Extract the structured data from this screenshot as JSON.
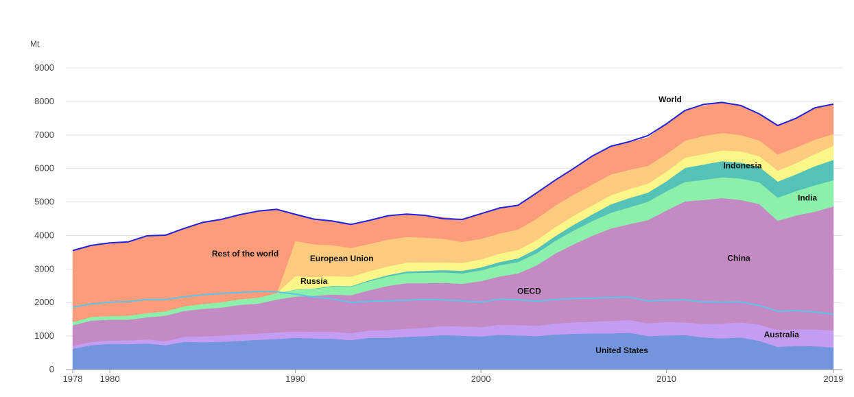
{
  "chart_data": {
    "type": "area",
    "stacked": true,
    "ylabel": "Mt",
    "ylim": [
      0,
      9000
    ],
    "yticks": [
      0,
      1000,
      2000,
      3000,
      4000,
      5000,
      6000,
      7000,
      8000,
      9000
    ],
    "xlim": [
      1978,
      2019
    ],
    "xticks": [
      1978,
      1980,
      1990,
      2000,
      2010,
      2019
    ],
    "grid": true,
    "x": [
      1978,
      1979,
      1980,
      1981,
      1982,
      1983,
      1984,
      1985,
      1986,
      1987,
      1988,
      1989,
      1990,
      1991,
      1992,
      1993,
      1994,
      1995,
      1996,
      1997,
      1998,
      1999,
      2000,
      2001,
      2002,
      2003,
      2004,
      2005,
      2006,
      2007,
      2008,
      2009,
      2010,
      2011,
      2012,
      2013,
      2014,
      2015,
      2016,
      2017,
      2018,
      2019
    ],
    "series": [
      {
        "name": "United States",
        "color": "#7295dd",
        "values": [
          620,
          730,
          770,
          760,
          780,
          730,
          830,
          820,
          830,
          860,
          890,
          910,
          950,
          930,
          920,
          880,
          950,
          950,
          980,
          1000,
          1030,
          1010,
          990,
          1040,
          1020,
          1000,
          1050,
          1070,
          1080,
          1080,
          1100,
          1000,
          1020,
          1030,
          960,
          930,
          960,
          860,
          680,
          710,
          700,
          660
        ]
      },
      {
        "name": "Australia",
        "color": "#c49df2",
        "values": [
          90,
          95,
          100,
          110,
          120,
          120,
          150,
          170,
          180,
          190,
          190,
          200,
          190,
          200,
          210,
          210,
          220,
          230,
          240,
          250,
          270,
          280,
          280,
          300,
          310,
          310,
          320,
          340,
          350,
          370,
          380,
          380,
          400,
          380,
          400,
          440,
          450,
          480,
          500,
          490,
          500,
          510
        ]
      },
      {
        "name": "China",
        "color": "#c48ac4",
        "values": [
          610,
          640,
          620,
          620,
          660,
          760,
          770,
          820,
          840,
          880,
          890,
          980,
          1040,
          1070,
          1110,
          1130,
          1200,
          1320,
          1360,
          1330,
          1290,
          1270,
          1370,
          1440,
          1540,
          1800,
          2090,
          2330,
          2560,
          2760,
          2860,
          3080,
          3330,
          3610,
          3700,
          3750,
          3650,
          3600,
          3260,
          3400,
          3510,
          3700
        ]
      },
      {
        "name": "India",
        "color": "#8cf0aa",
        "values": [
          100,
          110,
          110,
          120,
          130,
          130,
          140,
          150,
          160,
          170,
          180,
          190,
          200,
          210,
          240,
          250,
          270,
          280,
          300,
          310,
          310,
          310,
          320,
          330,
          340,
          360,
          380,
          410,
          440,
          470,
          500,
          550,
          570,
          580,
          600,
          620,
          640,
          650,
          690,
          730,
          790,
          780
        ]
      },
      {
        "name": "Indonesia",
        "color": "#55c2b8",
        "values": [
          0,
          0,
          0,
          0,
          0,
          0,
          0,
          0,
          0,
          0,
          0,
          0,
          10,
          10,
          20,
          20,
          30,
          40,
          50,
          60,
          70,
          80,
          90,
          100,
          110,
          130,
          140,
          170,
          200,
          250,
          280,
          270,
          300,
          420,
          460,
          480,
          480,
          460,
          480,
          500,
          570,
          610
        ]
      },
      {
        "name": "Russia",
        "color": "#faf687",
        "values": [
          0,
          0,
          0,
          0,
          0,
          0,
          0,
          0,
          0,
          0,
          0,
          0,
          400,
          340,
          290,
          280,
          270,
          260,
          260,
          250,
          230,
          230,
          240,
          250,
          250,
          260,
          270,
          270,
          270,
          270,
          270,
          270,
          290,
          300,
          310,
          320,
          330,
          320,
          330,
          330,
          360,
          420
        ]
      },
      {
        "name": "European Union",
        "color": "#fccb80",
        "values": [
          0,
          0,
          0,
          0,
          0,
          0,
          0,
          0,
          0,
          0,
          0,
          0,
          1050,
          980,
          920,
          860,
          810,
          800,
          770,
          740,
          700,
          630,
          610,
          600,
          610,
          640,
          640,
          630,
          620,
          620,
          570,
          530,
          520,
          510,
          540,
          520,
          490,
          470,
          480,
          470,
          430,
          350
        ]
      },
      {
        "name": "Rest of the world",
        "color": "#fd9c7b",
        "values": [
          2130,
          2130,
          2150,
          2180,
          2300,
          2270,
          2320,
          2410,
          2470,
          2520,
          2580,
          2500,
          790,
          750,
          710,
          680,
          700,
          710,
          680,
          660,
          640,
          670,
          730,
          760,
          720,
          770,
          750,
          780,
          820,
          810,
          820,
          840,
          900,
          900,
          900,
          910,
          880,
          800,
          880,
          870,
          940,
          900
        ]
      }
    ],
    "lines": [
      {
        "name": "World",
        "color": "#2121dd",
        "values": [
          3550,
          3705,
          3780,
          3810,
          3990,
          4010,
          4210,
          4390,
          4480,
          4620,
          4730,
          4780,
          4630,
          4490,
          4430,
          4330,
          4450,
          4590,
          4640,
          4600,
          4500,
          4480,
          4650,
          4820,
          4900,
          5270,
          5650,
          6000,
          6370,
          6660,
          6800,
          6980,
          7330,
          7730,
          7910,
          7970,
          7880,
          7630,
          7280,
          7500,
          7810,
          7920
        ]
      },
      {
        "name": "OECD",
        "color": "#5cc4ec",
        "values": [
          1860,
          1960,
          2010,
          2030,
          2090,
          2090,
          2170,
          2230,
          2270,
          2300,
          2330,
          2320,
          2250,
          2160,
          2110,
          2000,
          2040,
          2050,
          2070,
          2090,
          2080,
          2050,
          2010,
          2100,
          2080,
          2040,
          2090,
          2120,
          2130,
          2150,
          2160,
          2050,
          2070,
          2080,
          2020,
          2010,
          2020,
          1910,
          1740,
          1760,
          1720,
          1650
        ]
      }
    ],
    "labels": [
      {
        "text": "World",
        "x": 2010.2,
        "y": 7980
      },
      {
        "text": "Indonesia",
        "x": 2014.1,
        "y": 6000
      },
      {
        "text": "India",
        "x": 2017.6,
        "y": 5040
      },
      {
        "text": "Rest of the world",
        "x": 1987.3,
        "y": 3370
      },
      {
        "text": "European Union",
        "x": 1992.5,
        "y": 3230
      },
      {
        "text": "Russia",
        "x": 1991.0,
        "y": 2560
      },
      {
        "text": "China",
        "x": 2013.9,
        "y": 3240
      },
      {
        "text": "OECD",
        "x": 2002.6,
        "y": 2260
      },
      {
        "text": "Australia",
        "x": 2016.2,
        "y": 960
      },
      {
        "text": "United States",
        "x": 2007.6,
        "y": 490
      }
    ]
  }
}
